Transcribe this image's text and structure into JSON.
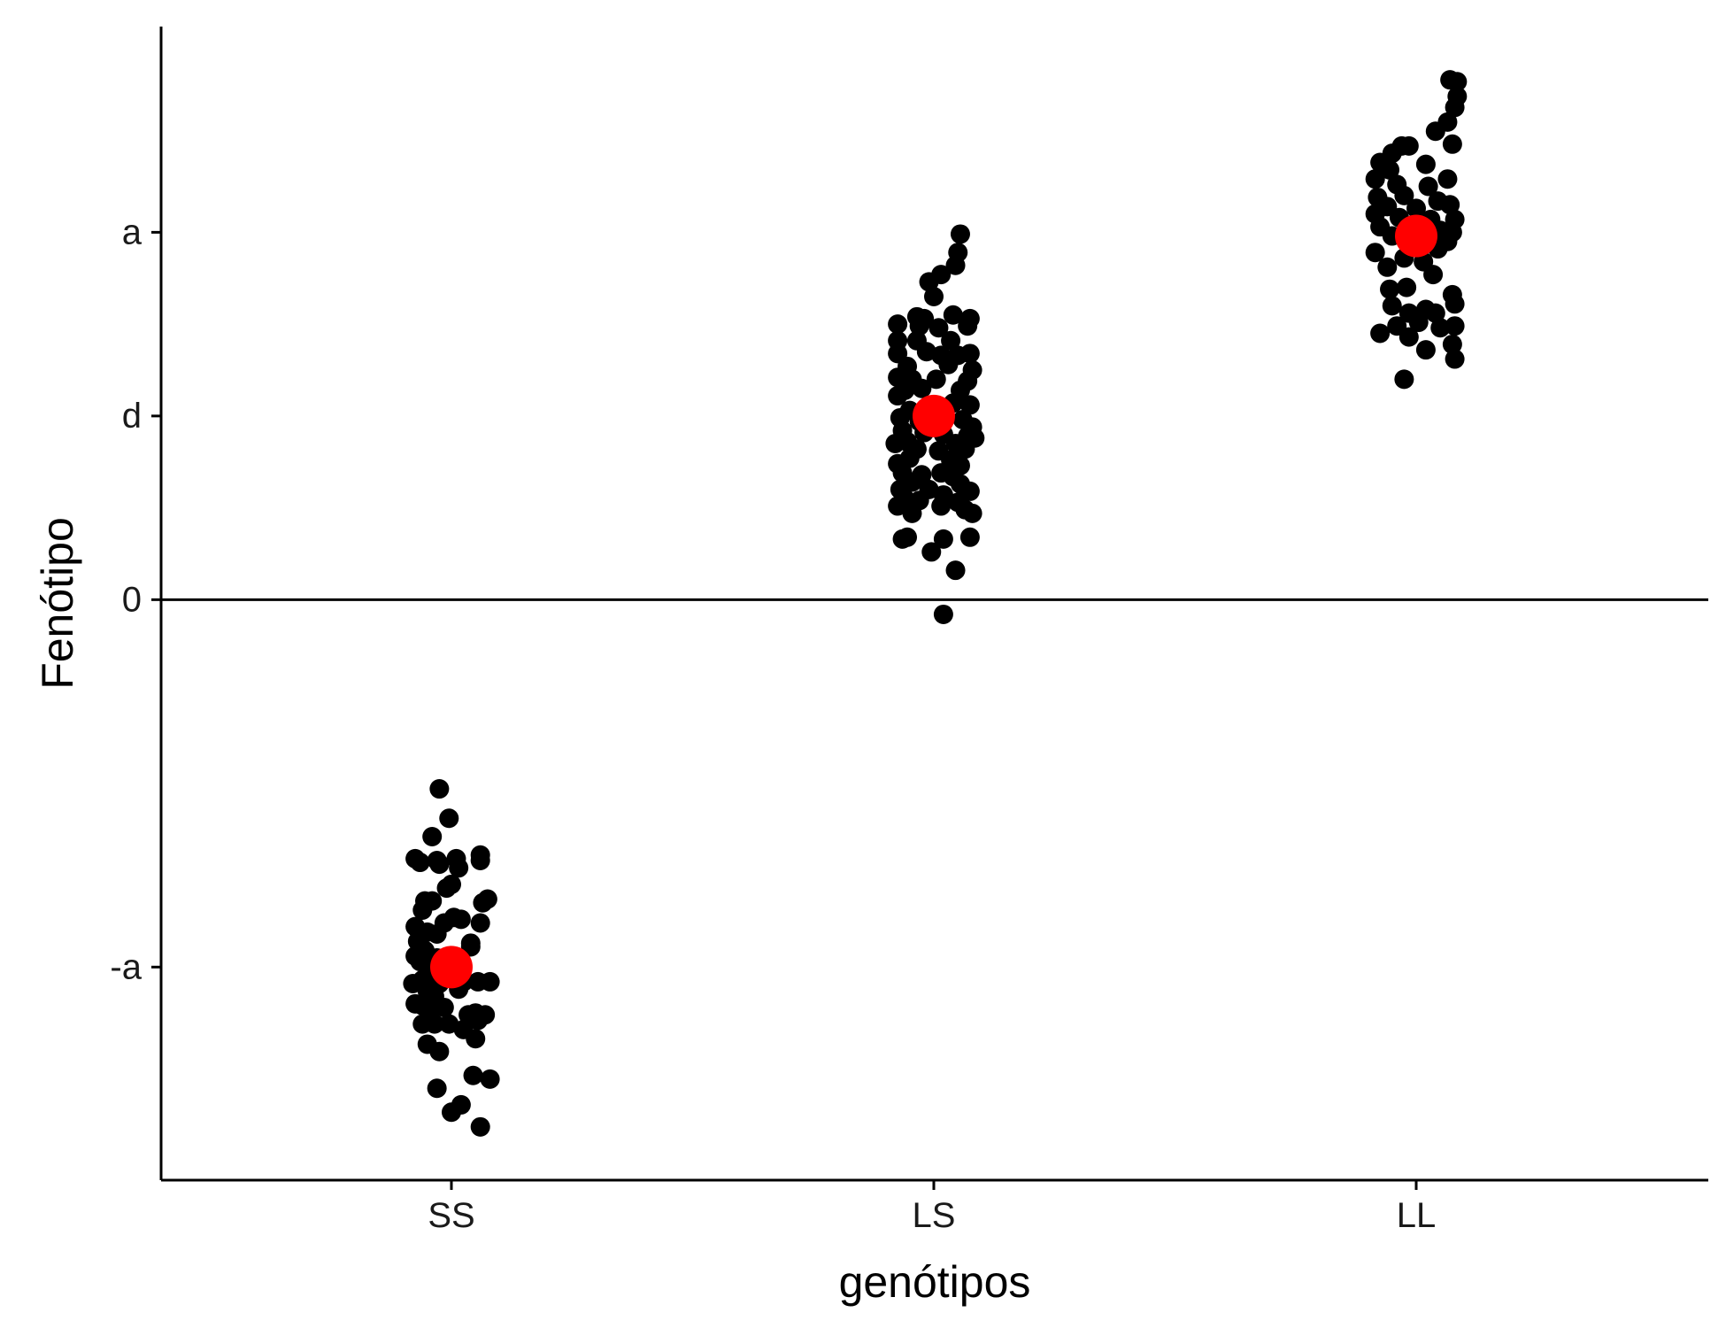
{
  "chart_data": {
    "type": "scatter",
    "xlabel": "genótipos",
    "ylabel": "Fenótipo",
    "categories": [
      "SS",
      "LS",
      "LL"
    ],
    "y_ticks": [
      {
        "label": "-a",
        "value": -1
      },
      {
        "label": "0",
        "value": 0
      },
      {
        "label": "d",
        "value": 0.5
      },
      {
        "label": "a",
        "value": 1
      }
    ],
    "ylim": [
      -1.58,
      1.56
    ],
    "reference_line_y": 0,
    "grid": false,
    "legend": "none",
    "colors": {
      "points": "#000000",
      "means": "#ff0000",
      "axis": "#000000"
    },
    "means": [
      {
        "category": "SS",
        "y": -1.0
      },
      {
        "category": "LS",
        "y": 0.5
      },
      {
        "category": "LL",
        "y": 0.99
      }
    ],
    "points": [
      {
        "category": "SS",
        "x": -0.025,
        "y": -0.515
      },
      {
        "category": "SS",
        "x": -0.005,
        "y": -0.595
      },
      {
        "category": "SS",
        "x": -0.04,
        "y": -0.645
      },
      {
        "category": "SS",
        "x": -0.075,
        "y": -0.705
      },
      {
        "category": "SS",
        "x": -0.065,
        "y": -0.715
      },
      {
        "category": "SS",
        "x": -0.03,
        "y": -0.71
      },
      {
        "category": "SS",
        "x": -0.025,
        "y": -0.72
      },
      {
        "category": "SS",
        "x": 0.01,
        "y": -0.705
      },
      {
        "category": "SS",
        "x": 0.015,
        "y": -0.73
      },
      {
        "category": "SS",
        "x": 0.06,
        "y": -0.695
      },
      {
        "category": "SS",
        "x": 0.06,
        "y": -0.71
      },
      {
        "category": "SS",
        "x": 0.0,
        "y": -0.775
      },
      {
        "category": "SS",
        "x": -0.01,
        "y": -0.785
      },
      {
        "category": "SS",
        "x": -0.04,
        "y": -0.82
      },
      {
        "category": "SS",
        "x": -0.055,
        "y": -0.82
      },
      {
        "category": "SS",
        "x": -0.06,
        "y": -0.845
      },
      {
        "category": "SS",
        "x": 0.075,
        "y": -0.815
      },
      {
        "category": "SS",
        "x": 0.065,
        "y": -0.825
      },
      {
        "category": "SS",
        "x": 0.005,
        "y": -0.865
      },
      {
        "category": "SS",
        "x": 0.02,
        "y": -0.87
      },
      {
        "category": "SS",
        "x": -0.015,
        "y": -0.88
      },
      {
        "category": "SS",
        "x": 0.06,
        "y": -0.88
      },
      {
        "category": "SS",
        "x": -0.075,
        "y": -0.89
      },
      {
        "category": "SS",
        "x": -0.05,
        "y": -0.905
      },
      {
        "category": "SS",
        "x": -0.03,
        "y": -0.91
      },
      {
        "category": "SS",
        "x": -0.07,
        "y": -0.93
      },
      {
        "category": "SS",
        "x": 0.04,
        "y": -0.935
      },
      {
        "category": "SS",
        "x": 0.04,
        "y": -0.945
      },
      {
        "category": "SS",
        "x": -0.055,
        "y": -0.955
      },
      {
        "category": "SS",
        "x": -0.075,
        "y": -0.97
      },
      {
        "category": "SS",
        "x": -0.03,
        "y": -0.975
      },
      {
        "category": "SS",
        "x": -0.065,
        "y": -0.985
      },
      {
        "category": "SS",
        "x": -0.015,
        "y": -0.99
      },
      {
        "category": "SS",
        "x": 0.015,
        "y": -1.005
      },
      {
        "category": "SS",
        "x": -0.045,
        "y": -1.015
      },
      {
        "category": "SS",
        "x": -0.01,
        "y": -1.025
      },
      {
        "category": "SS",
        "x": -0.06,
        "y": -1.035
      },
      {
        "category": "SS",
        "x": -0.08,
        "y": -1.045
      },
      {
        "category": "SS",
        "x": -0.025,
        "y": -1.045
      },
      {
        "category": "SS",
        "x": 0.025,
        "y": -1.04
      },
      {
        "category": "SS",
        "x": 0.055,
        "y": -1.04
      },
      {
        "category": "SS",
        "x": 0.08,
        "y": -1.04
      },
      {
        "category": "SS",
        "x": 0.015,
        "y": -1.06
      },
      {
        "category": "SS",
        "x": -0.05,
        "y": -1.065
      },
      {
        "category": "SS",
        "x": -0.035,
        "y": -1.08
      },
      {
        "category": "SS",
        "x": -0.075,
        "y": -1.1
      },
      {
        "category": "SS",
        "x": -0.06,
        "y": -1.105
      },
      {
        "category": "SS",
        "x": -0.015,
        "y": -1.11
      },
      {
        "category": "SS",
        "x": -0.045,
        "y": -1.12
      },
      {
        "category": "SS",
        "x": 0.035,
        "y": -1.13
      },
      {
        "category": "SS",
        "x": 0.07,
        "y": -1.13
      },
      {
        "category": "SS",
        "x": 0.05,
        "y": -1.125
      },
      {
        "category": "SS",
        "x": -0.005,
        "y": -1.155
      },
      {
        "category": "SS",
        "x": -0.06,
        "y": -1.155
      },
      {
        "category": "SS",
        "x": -0.035,
        "y": -1.155
      },
      {
        "category": "SS",
        "x": 0.055,
        "y": -1.145
      },
      {
        "category": "SS",
        "x": 0.025,
        "y": -1.17
      },
      {
        "category": "SS",
        "x": -0.05,
        "y": -1.21
      },
      {
        "category": "SS",
        "x": -0.025,
        "y": -1.23
      },
      {
        "category": "SS",
        "x": 0.05,
        "y": -1.195
      },
      {
        "category": "SS",
        "x": 0.045,
        "y": -1.295
      },
      {
        "category": "SS",
        "x": 0.08,
        "y": -1.305
      },
      {
        "category": "SS",
        "x": -0.03,
        "y": -1.33
      },
      {
        "category": "SS",
        "x": 0.02,
        "y": -1.375
      },
      {
        "category": "SS",
        "x": 0.0,
        "y": -1.395
      },
      {
        "category": "SS",
        "x": 0.06,
        "y": -1.435
      },
      {
        "category": "LS",
        "x": 0.055,
        "y": 0.995
      },
      {
        "category": "LS",
        "x": 0.05,
        "y": 0.945
      },
      {
        "category": "LS",
        "x": 0.045,
        "y": 0.91
      },
      {
        "category": "LS",
        "x": 0.015,
        "y": 0.885
      },
      {
        "category": "LS",
        "x": -0.01,
        "y": 0.865
      },
      {
        "category": "LS",
        "x": 0.0,
        "y": 0.825
      },
      {
        "category": "LS",
        "x": 0.04,
        "y": 0.775
      },
      {
        "category": "LS",
        "x": -0.035,
        "y": 0.77
      },
      {
        "category": "LS",
        "x": -0.02,
        "y": 0.765
      },
      {
        "category": "LS",
        "x": 0.075,
        "y": 0.765
      },
      {
        "category": "LS",
        "x": -0.075,
        "y": 0.75
      },
      {
        "category": "LS",
        "x": 0.07,
        "y": 0.745
      },
      {
        "category": "LS",
        "x": -0.03,
        "y": 0.745
      },
      {
        "category": "LS",
        "x": 0.01,
        "y": 0.74
      },
      {
        "category": "LS",
        "x": -0.075,
        "y": 0.705
      },
      {
        "category": "LS",
        "x": -0.035,
        "y": 0.705
      },
      {
        "category": "LS",
        "x": 0.035,
        "y": 0.705
      },
      {
        "category": "LS",
        "x": -0.075,
        "y": 0.67
      },
      {
        "category": "LS",
        "x": -0.015,
        "y": 0.675
      },
      {
        "category": "LS",
        "x": 0.015,
        "y": 0.665
      },
      {
        "category": "LS",
        "x": 0.05,
        "y": 0.665
      },
      {
        "category": "LS",
        "x": 0.075,
        "y": 0.67
      },
      {
        "category": "LS",
        "x": -0.055,
        "y": 0.635
      },
      {
        "category": "LS",
        "x": 0.03,
        "y": 0.64
      },
      {
        "category": "LS",
        "x": 0.08,
        "y": 0.625
      },
      {
        "category": "LS",
        "x": -0.075,
        "y": 0.605
      },
      {
        "category": "LS",
        "x": -0.045,
        "y": 0.6
      },
      {
        "category": "LS",
        "x": 0.005,
        "y": 0.6
      },
      {
        "category": "LS",
        "x": 0.07,
        "y": 0.595
      },
      {
        "category": "LS",
        "x": -0.06,
        "y": 0.57
      },
      {
        "category": "LS",
        "x": -0.025,
        "y": 0.575
      },
      {
        "category": "LS",
        "x": 0.055,
        "y": 0.57
      },
      {
        "category": "LS",
        "x": -0.075,
        "y": 0.555
      },
      {
        "category": "LS",
        "x": 0.04,
        "y": 0.535
      },
      {
        "category": "LS",
        "x": 0.075,
        "y": 0.53
      },
      {
        "category": "LS",
        "x": -0.05,
        "y": 0.515
      },
      {
        "category": "LS",
        "x": -0.07,
        "y": 0.495
      },
      {
        "category": "LS",
        "x": -0.03,
        "y": 0.485
      },
      {
        "category": "LS",
        "x": 0.06,
        "y": 0.49
      },
      {
        "category": "LS",
        "x": 0.08,
        "y": 0.47
      },
      {
        "category": "LS",
        "x": -0.065,
        "y": 0.46
      },
      {
        "category": "LS",
        "x": -0.02,
        "y": 0.455
      },
      {
        "category": "LS",
        "x": 0.02,
        "y": 0.45
      },
      {
        "category": "LS",
        "x": 0.07,
        "y": 0.445
      },
      {
        "category": "LS",
        "x": -0.055,
        "y": 0.43
      },
      {
        "category": "LS",
        "x": 0.045,
        "y": 0.425
      },
      {
        "category": "LS",
        "x": 0.085,
        "y": 0.44
      },
      {
        "category": "LS",
        "x": -0.08,
        "y": 0.425
      },
      {
        "category": "LS",
        "x": -0.035,
        "y": 0.41
      },
      {
        "category": "LS",
        "x": 0.01,
        "y": 0.405
      },
      {
        "category": "LS",
        "x": 0.065,
        "y": 0.41
      },
      {
        "category": "LS",
        "x": -0.05,
        "y": 0.385
      },
      {
        "category": "LS",
        "x": -0.075,
        "y": 0.37
      },
      {
        "category": "LS",
        "x": 0.035,
        "y": 0.38
      },
      {
        "category": "LS",
        "x": 0.055,
        "y": 0.365
      },
      {
        "category": "LS",
        "x": -0.065,
        "y": 0.345
      },
      {
        "category": "LS",
        "x": -0.025,
        "y": 0.34
      },
      {
        "category": "LS",
        "x": 0.015,
        "y": 0.345
      },
      {
        "category": "LS",
        "x": 0.04,
        "y": 0.335
      },
      {
        "category": "LS",
        "x": -0.045,
        "y": 0.32
      },
      {
        "category": "LS",
        "x": 0.055,
        "y": 0.315
      },
      {
        "category": "LS",
        "x": -0.07,
        "y": 0.3
      },
      {
        "category": "LS",
        "x": -0.01,
        "y": 0.3
      },
      {
        "category": "LS",
        "x": 0.075,
        "y": 0.295
      },
      {
        "category": "LS",
        "x": 0.02,
        "y": 0.285
      },
      {
        "category": "LS",
        "x": -0.06,
        "y": 0.275
      },
      {
        "category": "LS",
        "x": -0.03,
        "y": 0.27
      },
      {
        "category": "LS",
        "x": 0.05,
        "y": 0.265
      },
      {
        "category": "LS",
        "x": -0.075,
        "y": 0.255
      },
      {
        "category": "LS",
        "x": 0.015,
        "y": 0.255
      },
      {
        "category": "LS",
        "x": 0.065,
        "y": 0.245
      },
      {
        "category": "LS",
        "x": -0.045,
        "y": 0.235
      },
      {
        "category": "LS",
        "x": 0.08,
        "y": 0.235
      },
      {
        "category": "LS",
        "x": -0.065,
        "y": 0.165
      },
      {
        "category": "LS",
        "x": 0.02,
        "y": 0.165
      },
      {
        "category": "LS",
        "x": -0.055,
        "y": 0.17
      },
      {
        "category": "LS",
        "x": 0.075,
        "y": 0.17
      },
      {
        "category": "LS",
        "x": -0.005,
        "y": 0.13
      },
      {
        "category": "LS",
        "x": 0.045,
        "y": 0.08
      },
      {
        "category": "LS",
        "x": 0.02,
        "y": -0.04
      },
      {
        "category": "LL",
        "x": 0.07,
        "y": 1.415
      },
      {
        "category": "LL",
        "x": 0.085,
        "y": 1.41
      },
      {
        "category": "LL",
        "x": 0.085,
        "y": 1.37
      },
      {
        "category": "LL",
        "x": 0.08,
        "y": 1.34
      },
      {
        "category": "LL",
        "x": 0.065,
        "y": 1.3
      },
      {
        "category": "LL",
        "x": 0.04,
        "y": 1.275
      },
      {
        "category": "LL",
        "x": 0.075,
        "y": 1.24
      },
      {
        "category": "LL",
        "x": -0.03,
        "y": 1.235
      },
      {
        "category": "LL",
        "x": -0.015,
        "y": 1.235
      },
      {
        "category": "LL",
        "x": -0.05,
        "y": 1.215
      },
      {
        "category": "LL",
        "x": 0.02,
        "y": 1.185
      },
      {
        "category": "LL",
        "x": -0.075,
        "y": 1.19
      },
      {
        "category": "LL",
        "x": -0.055,
        "y": 1.17
      },
      {
        "category": "LL",
        "x": -0.085,
        "y": 1.145
      },
      {
        "category": "LL",
        "x": -0.04,
        "y": 1.13
      },
      {
        "category": "LL",
        "x": 0.025,
        "y": 1.125
      },
      {
        "category": "LL",
        "x": 0.065,
        "y": 1.145
      },
      {
        "category": "LL",
        "x": -0.08,
        "y": 1.095
      },
      {
        "category": "LL",
        "x": -0.025,
        "y": 1.1
      },
      {
        "category": "LL",
        "x": 0.045,
        "y": 1.085
      },
      {
        "category": "LL",
        "x": 0.07,
        "y": 1.075
      },
      {
        "category": "LL",
        "x": -0.06,
        "y": 1.07
      },
      {
        "category": "LL",
        "x": 0.0,
        "y": 1.065
      },
      {
        "category": "LL",
        "x": -0.085,
        "y": 1.05
      },
      {
        "category": "LL",
        "x": -0.035,
        "y": 1.04
      },
      {
        "category": "LL",
        "x": 0.03,
        "y": 1.035
      },
      {
        "category": "LL",
        "x": 0.08,
        "y": 1.035
      },
      {
        "category": "LL",
        "x": -0.075,
        "y": 1.015
      },
      {
        "category": "LL",
        "x": 0.05,
        "y": 1.005
      },
      {
        "category": "LL",
        "x": 0.075,
        "y": 1.0
      },
      {
        "category": "LL",
        "x": -0.05,
        "y": 0.99
      },
      {
        "category": "LL",
        "x": 0.065,
        "y": 0.975
      },
      {
        "category": "LL",
        "x": -0.085,
        "y": 0.945
      },
      {
        "category": "LL",
        "x": 0.045,
        "y": 0.955
      },
      {
        "category": "LL",
        "x": -0.025,
        "y": 0.93
      },
      {
        "category": "LL",
        "x": 0.015,
        "y": 0.92
      },
      {
        "category": "LL",
        "x": -0.06,
        "y": 0.905
      },
      {
        "category": "LL",
        "x": 0.035,
        "y": 0.885
      },
      {
        "category": "LL",
        "x": -0.055,
        "y": 0.845
      },
      {
        "category": "LL",
        "x": -0.02,
        "y": 0.85
      },
      {
        "category": "LL",
        "x": 0.075,
        "y": 0.83
      },
      {
        "category": "LL",
        "x": 0.08,
        "y": 0.805
      },
      {
        "category": "LL",
        "x": -0.05,
        "y": 0.8
      },
      {
        "category": "LL",
        "x": 0.02,
        "y": 0.79
      },
      {
        "category": "LL",
        "x": 0.04,
        "y": 0.78
      },
      {
        "category": "LL",
        "x": -0.015,
        "y": 0.78
      },
      {
        "category": "LL",
        "x": -0.04,
        "y": 0.745
      },
      {
        "category": "LL",
        "x": 0.005,
        "y": 0.755
      },
      {
        "category": "LL",
        "x": 0.05,
        "y": 0.74
      },
      {
        "category": "LL",
        "x": 0.08,
        "y": 0.745
      },
      {
        "category": "LL",
        "x": -0.075,
        "y": 0.725
      },
      {
        "category": "LL",
        "x": -0.015,
        "y": 0.715
      },
      {
        "category": "LL",
        "x": 0.075,
        "y": 0.695
      },
      {
        "category": "LL",
        "x": 0.02,
        "y": 0.68
      },
      {
        "category": "LL",
        "x": 0.08,
        "y": 0.655
      },
      {
        "category": "LL",
        "x": -0.025,
        "y": 0.6
      }
    ]
  }
}
